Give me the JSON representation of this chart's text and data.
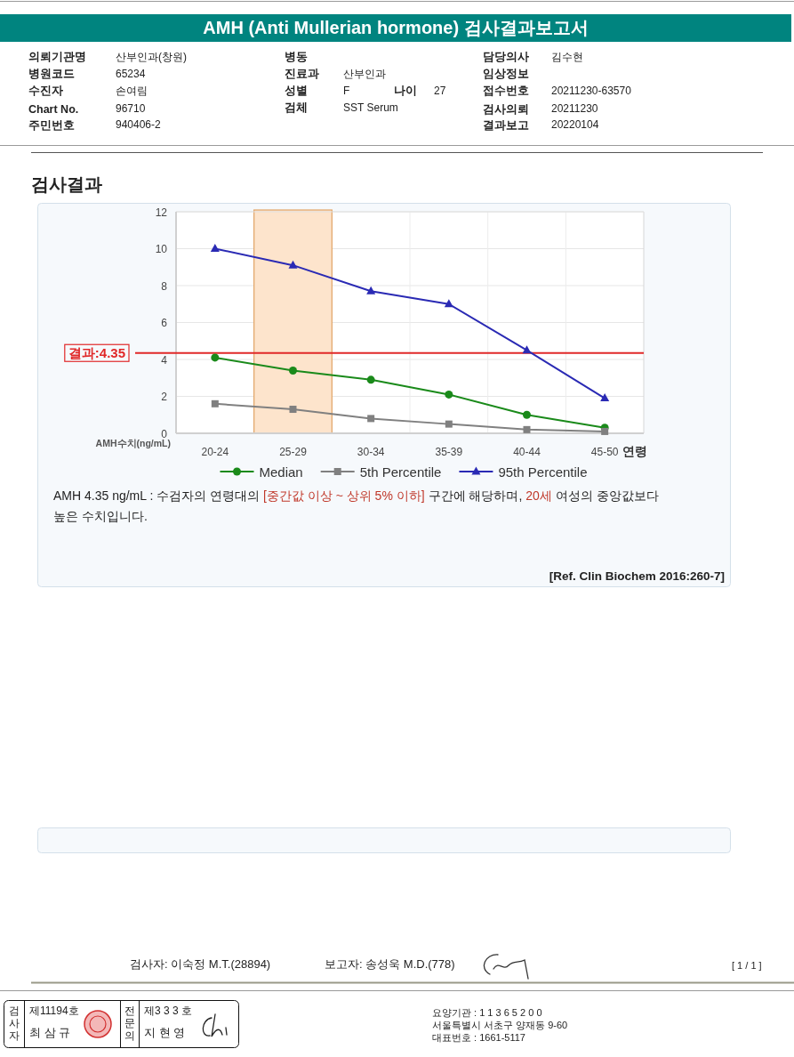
{
  "chart_data": {
    "type": "line",
    "title": "AMH (Anti Mullerian hormone) 검사결과보고서",
    "subtitle": "검사결과",
    "xlabel": "연령",
    "ylabel": "AMH수치(ng/mL)",
    "categories": [
      "20-24",
      "25-29",
      "30-34",
      "35-39",
      "40-44",
      "45-50"
    ],
    "series": [
      {
        "name": "Median",
        "color": "#1a8a1a",
        "marker": "circle",
        "values": [
          4.1,
          3.4,
          2.9,
          2.1,
          1.0,
          0.3
        ]
      },
      {
        "name": "5th Percentile",
        "color": "#808080",
        "marker": "square",
        "values": [
          1.6,
          1.3,
          0.8,
          0.5,
          0.2,
          0.1
        ]
      },
      {
        "name": "95th Percentile",
        "color": "#2a2ab4",
        "marker": "triangle",
        "values": [
          10.0,
          9.1,
          7.7,
          7.0,
          4.5,
          1.9
        ]
      }
    ],
    "ylim": [
      0,
      12
    ],
    "yticks": [
      0,
      2,
      4,
      6,
      8,
      10,
      12
    ],
    "grid": true,
    "legend": "bottom",
    "ref_lines": [
      {
        "axis": "y",
        "value": 4.35,
        "label": "결과:4.35",
        "color": "#e02828"
      }
    ],
    "bands": [
      {
        "axis": "x",
        "from": "25-29",
        "to": "25-29",
        "color": "#fde4cc"
      }
    ],
    "annotations": [
      "의뢰기관명",
      "산부인과(창원)",
      "병원코드",
      "65234",
      "수진자",
      "손여림",
      "Chart No.",
      "96710",
      "주민번호",
      "940406-2",
      "병동",
      "진료과",
      "산부인과",
      "성별",
      "F",
      "나이",
      "27",
      "검체",
      "SST Serum",
      "담당의사",
      "김수현",
      "임상정보",
      "접수번호",
      "20211230-63570",
      "검사의뢰",
      "20211230",
      "결과보고",
      "20220104",
      "AMH 4.35 ng/mL : 수검자의 연령대의",
      "[중간값 이상 ~ 상위 5% 이하]",
      "구간에 해당하며,",
      "20세",
      "여성의 중앙값보다",
      "높은 수치입니다.",
      "[Ref. Clin Biochem 2016:260-7]",
      "검사자: 이숙정 M.T.(28894)",
      "보고자: 송성욱 M.D.(778)",
      "[ 1 / 1 ]",
      "검사자",
      "제11194호",
      "최 삼 규",
      "전문의",
      "제3 3 3 호",
      "지 현 영",
      "요양기관 : 1 1 3 6 5 2 0 0",
      "서울특별시 서초구 양재동 9-60",
      "대표번호 : 1661-5117"
    ]
  }
}
